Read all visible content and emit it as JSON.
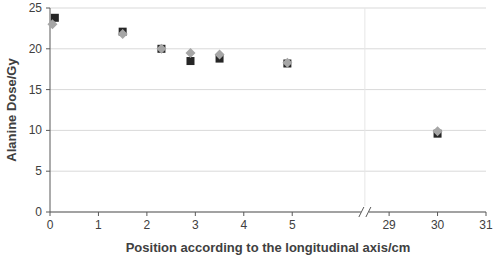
{
  "chart_data": {
    "type": "scatter",
    "x_label": "Position according to the longitudinal axis/cm",
    "y_label": "Alanine Dose/Gy",
    "series": [
      {
        "color": "#262626",
        "marker": "square",
        "x": [
          0.1,
          1.5,
          2.3,
          2.9,
          3.5,
          4.9,
          30
        ],
        "values": [
          23.8,
          22.1,
          20.0,
          18.5,
          18.8,
          18.2,
          9.6
        ]
      },
      {
        "color": "#a6a6a6",
        "marker": "diamond",
        "x": [
          0.05,
          1.5,
          2.3,
          2.9,
          3.5,
          4.9,
          30
        ],
        "values": [
          23.0,
          21.8,
          20.0,
          19.5,
          19.3,
          18.3,
          9.9
        ]
      }
    ],
    "xlim": [
      0,
      31
    ],
    "xticks": [
      0,
      1,
      2,
      3,
      4,
      5,
      29,
      30,
      31
    ],
    "ylim": [
      0,
      25
    ],
    "yticks": [
      0,
      5,
      10,
      15,
      20,
      25
    ],
    "grid": true
  }
}
